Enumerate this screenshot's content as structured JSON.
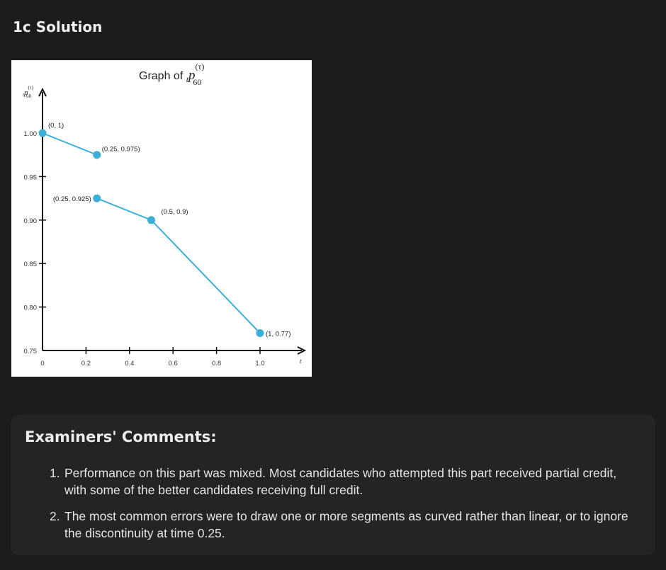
{
  "section": {
    "title": "1c Solution"
  },
  "chart_data": {
    "type": "line",
    "title_prefix": "Graph of",
    "title_symbol": {
      "pre_subscript": "t",
      "base": "p",
      "superscript": "(τ)",
      "subscript": "60"
    },
    "xlabel": "t",
    "ylabel_symbol": {
      "pre_subscript": "t",
      "base": "p",
      "superscript": "(τ)",
      "subscript": "60"
    },
    "xlim": [
      0,
      1.0
    ],
    "ylim": [
      0.75,
      1.0
    ],
    "x_ticks": [
      "0",
      "0.2",
      "0.4",
      "0.6",
      "0.8",
      "1.0"
    ],
    "y_ticks": [
      "0.75",
      "0.80",
      "0.85",
      "0.90",
      "0.95",
      "1.00"
    ],
    "grid": false,
    "series_color": "#3ab0d8",
    "segments": [
      {
        "points": [
          {
            "x": 0,
            "y": 1,
            "label": "(0, 1)"
          },
          {
            "x": 0.25,
            "y": 0.975,
            "label": "(0.25, 0.975)"
          }
        ]
      },
      {
        "points": [
          {
            "x": 0.25,
            "y": 0.925,
            "label": "(0.25, 0.925)"
          },
          {
            "x": 0.5,
            "y": 0.9,
            "label": "(0.5, 0.9)"
          },
          {
            "x": 1,
            "y": 0.77,
            "label": "(1, 0.77)"
          }
        ]
      }
    ]
  },
  "comments": {
    "title": "Examiners' Comments:",
    "items": [
      {
        "number": "1.",
        "text": "Performance on this part was mixed. Most candidates who attempted this part received partial credit, with some of the better candidates receiving full credit."
      },
      {
        "number": "2.",
        "text": "The most common errors were to draw one or more segments as curved rather than linear, or to ignore the discontinuity at time 0.25."
      }
    ]
  }
}
